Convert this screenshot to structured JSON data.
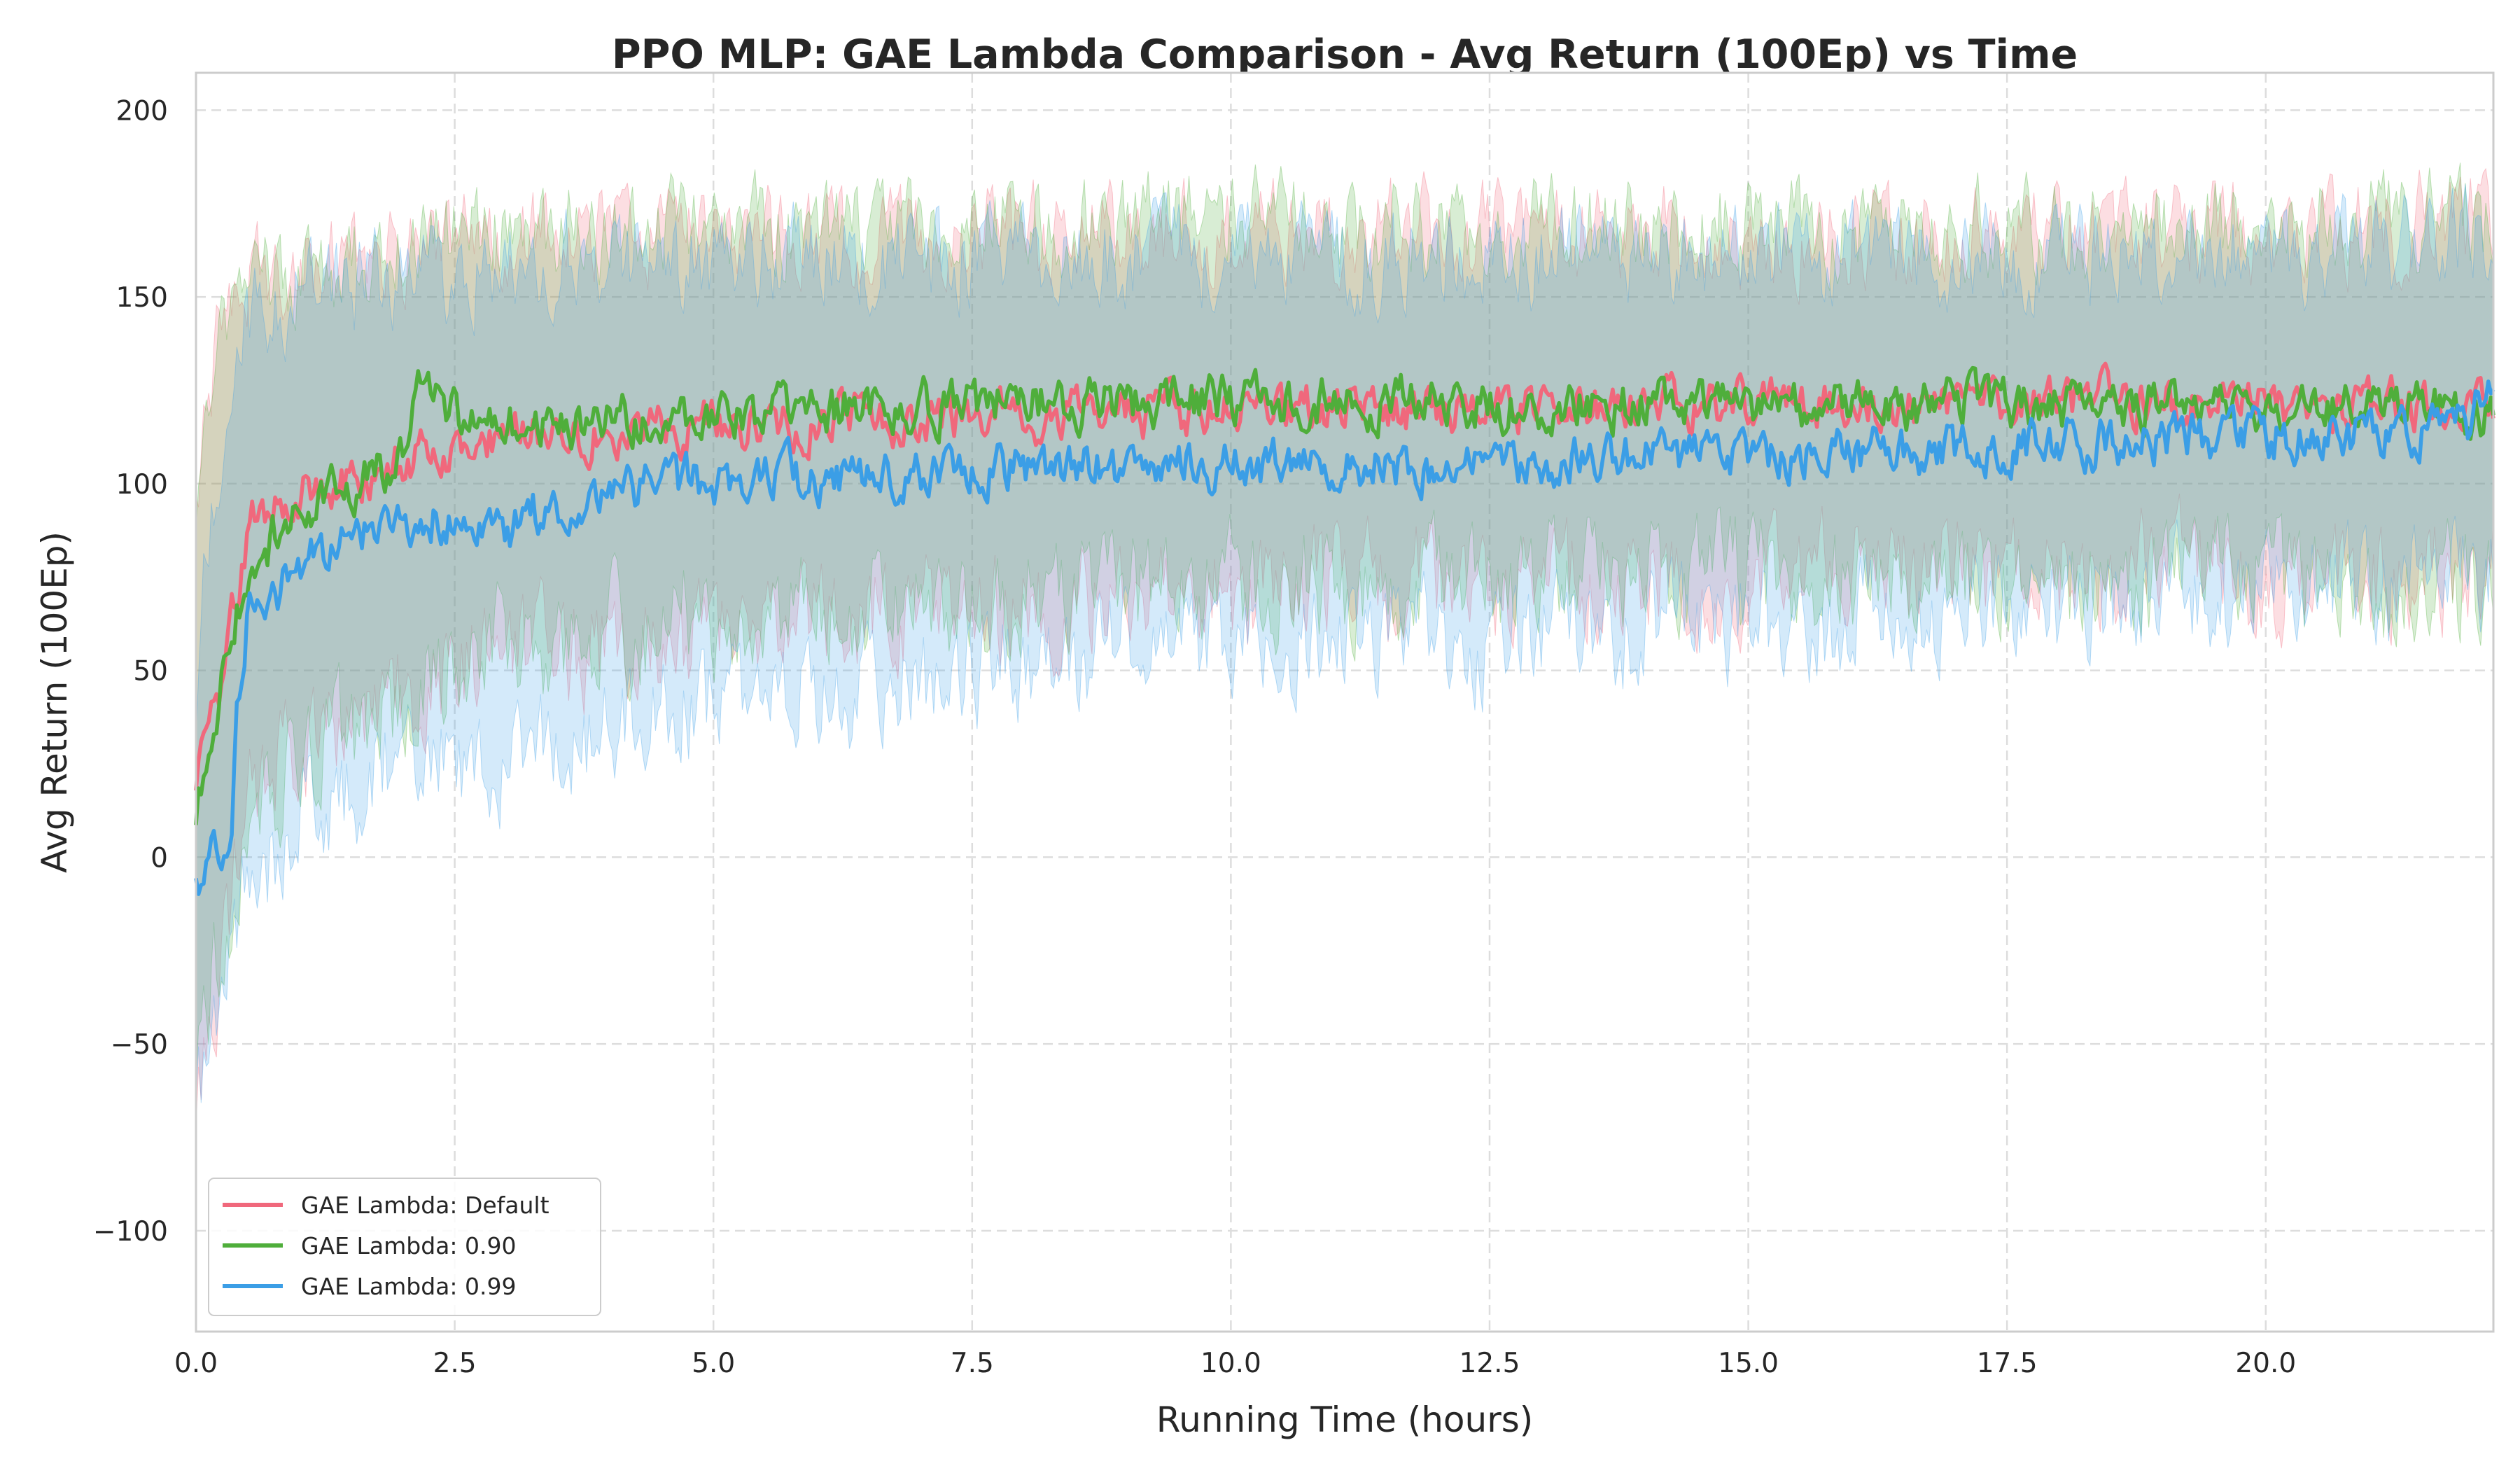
{
  "chart_data": {
    "type": "line",
    "title": "PPO MLP: GAE Lambda Comparison - Avg Return (100Ep) vs Time",
    "xlabel": "Running Time (hours)",
    "ylabel": "Avg Return (100Ep)",
    "xlim": [
      0,
      22.2
    ],
    "ylim": [
      -127,
      210
    ],
    "xticks": [
      0.0,
      2.5,
      5.0,
      7.5,
      10.0,
      12.5,
      15.0,
      17.5,
      20.0
    ],
    "xtick_labels": [
      "0.0",
      "2.5",
      "5.0",
      "7.5",
      "10.0",
      "12.5",
      "15.0",
      "17.5",
      "20.0"
    ],
    "yticks": [
      -100,
      -50,
      0,
      50,
      100,
      150,
      200
    ],
    "ytick_labels": [
      "−100",
      "−50",
      "0",
      "50",
      "100",
      "150",
      "200"
    ],
    "grid": true,
    "legend_position": "lower-left",
    "series": [
      {
        "name": "GAE Lambda: Default",
        "color": "#f0687c",
        "x": [
          0,
          0.1,
          0.2,
          0.3,
          0.4,
          0.5,
          0.75,
          1.0,
          1.5,
          2.0,
          2.5,
          3.0,
          3.5,
          4.0,
          4.5,
          5.0,
          5.5,
          6.0,
          6.5,
          7.0,
          7.5,
          8.0,
          8.5,
          9.0,
          9.5,
          10.0,
          10.5,
          11.0,
          11.5,
          12.0,
          12.5,
          13.0,
          13.5,
          14.0,
          14.5,
          15.0,
          15.5,
          16.0,
          16.5,
          17.0,
          17.5,
          18.0,
          18.5,
          19.0,
          19.5,
          20.0,
          20.5,
          21.0,
          21.5,
          22.0,
          22.2
        ],
        "y": [
          20,
          35,
          40,
          55,
          72,
          88,
          95,
          98,
          102,
          106,
          110,
          112,
          113,
          114,
          115,
          116,
          116,
          117,
          117,
          118,
          118,
          118,
          119,
          119,
          119,
          119,
          120,
          120,
          120,
          120,
          120,
          120,
          121,
          121,
          121,
          121,
          121,
          121,
          121,
          122,
          122,
          122,
          122,
          122,
          122,
          121,
          121,
          121,
          121,
          122,
          123
        ],
        "band_lower": [
          -60,
          -45,
          -35,
          -20,
          0,
          15,
          25,
          30,
          38,
          44,
          48,
          52,
          55,
          57,
          59,
          61,
          62,
          63,
          64,
          65,
          66,
          67,
          68,
          69,
          70,
          70,
          71,
          72,
          72,
          73,
          73,
          74,
          74,
          75,
          75,
          75,
          76,
          76,
          76,
          76,
          77,
          77,
          77,
          77,
          77,
          76,
          75,
          75,
          74,
          76,
          80
        ],
        "band_upper": [
          95,
          120,
          135,
          140,
          148,
          152,
          155,
          157,
          160,
          162,
          163,
          164,
          165,
          165,
          166,
          166,
          166,
          167,
          167,
          167,
          167,
          167,
          167,
          167,
          167,
          167,
          167,
          167,
          167,
          167,
          167,
          167,
          167,
          167,
          167,
          167,
          167,
          167,
          167,
          167,
          167,
          167,
          167,
          167,
          167,
          167,
          168,
          169,
          170,
          170,
          168
        ]
      },
      {
        "name": "GAE Lambda: 0.90",
        "color": "#4fae3b",
        "x": [
          0,
          0.1,
          0.2,
          0.3,
          0.4,
          0.5,
          0.75,
          1.0,
          1.5,
          2.0,
          2.2,
          2.5,
          3.0,
          3.5,
          4.0,
          4.5,
          5.0,
          5.5,
          6.0,
          6.5,
          7.0,
          7.5,
          8.0,
          8.5,
          9.0,
          9.5,
          10.0,
          10.5,
          11.0,
          11.5,
          12.0,
          12.5,
          13.0,
          13.5,
          14.0,
          14.5,
          15.0,
          15.5,
          16.0,
          16.5,
          17.0,
          17.5,
          18.0,
          18.5,
          19.0,
          19.5,
          20.0,
          20.5,
          21.0,
          21.5,
          22.0,
          22.2
        ],
        "y": [
          10,
          28,
          35,
          60,
          68,
          72,
          85,
          94,
          100,
          106,
          128,
          118,
          116,
          116,
          117,
          118,
          119,
          119,
          120,
          121,
          121,
          121,
          122,
          122,
          122,
          122,
          122,
          122,
          122,
          122,
          122,
          121,
          121,
          121,
          121,
          121,
          121,
          121,
          121,
          121,
          121,
          121,
          121,
          121,
          121,
          121,
          121,
          121,
          121,
          120,
          120,
          118
        ],
        "band_lower": [
          -55,
          -40,
          -30,
          -15,
          0,
          10,
          18,
          25,
          32,
          38,
          45,
          52,
          56,
          58,
          60,
          62,
          64,
          65,
          66,
          67,
          68,
          69,
          70,
          71,
          71,
          72,
          72,
          73,
          73,
          73,
          74,
          74,
          74,
          74,
          75,
          75,
          75,
          75,
          75,
          75,
          75,
          75,
          75,
          75,
          75,
          75,
          74,
          73,
          72,
          72,
          73,
          78
        ],
        "band_upper": [
          80,
          110,
          130,
          145,
          150,
          152,
          155,
          157,
          160,
          163,
          166,
          167,
          168,
          168,
          168,
          168,
          168,
          169,
          169,
          170,
          170,
          170,
          170,
          170,
          170,
          170,
          170,
          170,
          170,
          170,
          170,
          169,
          169,
          169,
          169,
          169,
          169,
          169,
          169,
          169,
          169,
          169,
          169,
          169,
          169,
          169,
          169,
          170,
          171,
          172,
          170,
          166
        ]
      },
      {
        "name": "GAE Lambda: 0.99",
        "color": "#3b9ee6",
        "x": [
          0,
          0.1,
          0.2,
          0.3,
          0.35,
          0.4,
          0.5,
          0.75,
          1.0,
          1.5,
          2.0,
          2.5,
          3.0,
          3.5,
          4.0,
          4.5,
          5.0,
          5.5,
          6.0,
          6.5,
          7.0,
          7.5,
          8.0,
          8.5,
          9.0,
          9.5,
          10.0,
          10.5,
          11.0,
          11.5,
          12.0,
          12.5,
          13.0,
          13.5,
          14.0,
          14.5,
          15.0,
          15.5,
          16.0,
          16.5,
          17.0,
          17.5,
          18.0,
          18.5,
          19.0,
          19.5,
          20.0,
          20.5,
          21.0,
          21.5,
          22.0,
          22.2
        ],
        "y": [
          -5,
          -4,
          5,
          6,
          7,
          40,
          65,
          70,
          78,
          85,
          90,
          92,
          88,
          95,
          98,
          100,
          100,
          101,
          102,
          102,
          103,
          103,
          104,
          104,
          104,
          105,
          105,
          105,
          105,
          105,
          105,
          106,
          106,
          106,
          107,
          107,
          107,
          108,
          108,
          109,
          110,
          110,
          111,
          112,
          112,
          112,
          113,
          113,
          114,
          115,
          118,
          126
        ],
        "band_lower": [
          -65,
          -55,
          -45,
          -35,
          -30,
          -20,
          -10,
          0,
          10,
          20,
          25,
          28,
          20,
          30,
          35,
          38,
          40,
          42,
          44,
          46,
          48,
          50,
          52,
          53,
          54,
          55,
          56,
          57,
          57,
          58,
          58,
          58,
          59,
          60,
          60,
          61,
          62,
          63,
          64,
          65,
          66,
          67,
          68,
          69,
          70,
          71,
          72,
          72,
          73,
          74,
          75,
          80
        ],
        "band_upper": [
          40,
          80,
          100,
          120,
          130,
          140,
          145,
          148,
          150,
          152,
          155,
          157,
          158,
          159,
          160,
          160,
          161,
          161,
          161,
          161,
          161,
          161,
          161,
          161,
          161,
          161,
          161,
          161,
          161,
          161,
          161,
          161,
          161,
          161,
          161,
          161,
          161,
          161,
          161,
          161,
          161,
          161,
          161,
          161,
          161,
          161,
          161,
          162,
          163,
          165,
          165,
          168
        ]
      }
    ]
  }
}
